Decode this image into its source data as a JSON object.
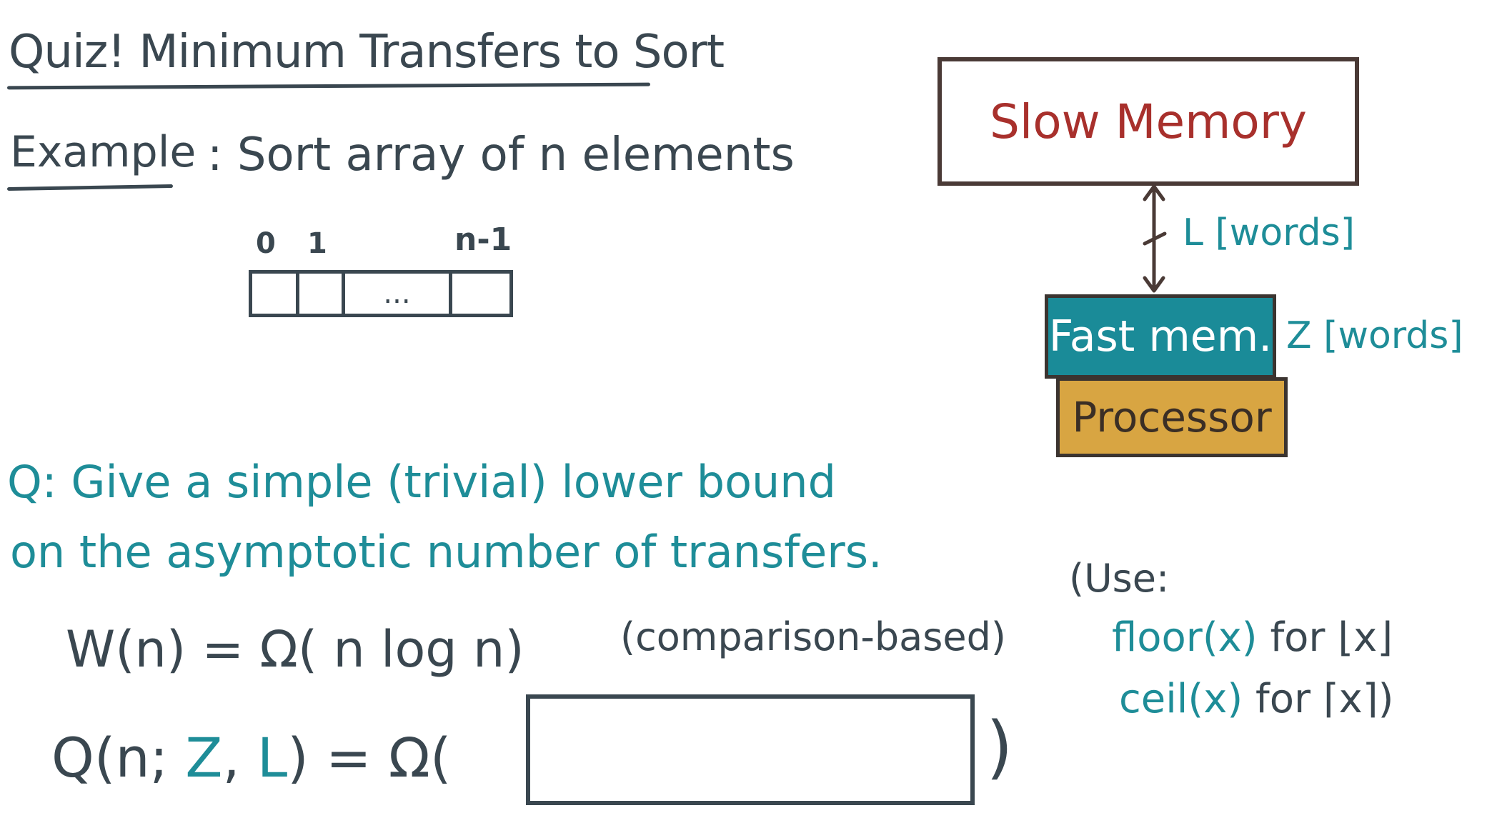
{
  "title": "Quiz! Minimum Transfers to Sort",
  "example": {
    "label": "Example",
    "text": ": Sort array of n elements"
  },
  "array": {
    "index_labels": [
      "0",
      "1",
      "n-1"
    ],
    "ellipsis": "..."
  },
  "diagram": {
    "slow_memory": "Slow Memory",
    "transfer_label": "L [words]",
    "fast_memory": "Fast mem.",
    "fast_memory_size": "Z [words]",
    "processor": "Processor",
    "colors": {
      "slow_memory_text": "#a8302c",
      "fast_memory_fill": "#1a8b98",
      "processor_fill": "#d8a542",
      "teal_text": "#1e8d98"
    }
  },
  "question": {
    "line1": "Q: Give a simple (trivial) lower bound",
    "line2": "on the asymptotic number of transfers."
  },
  "equations": {
    "work": "W(n) = Ω( n log n)",
    "work_note": "(comparison-based)",
    "transfers_prefix": "Q(n; ",
    "transfers_Z": "Z",
    "transfers_comma": ", ",
    "transfers_L": "L",
    "transfers_suffix": ") = Ω(",
    "answer_value": "",
    "close_paren": ")"
  },
  "use_note": {
    "label": "(Use:",
    "floor_code": "floor(x)",
    "floor_for": " for ",
    "floor_symbol": "⌊x⌋",
    "ceil_code": "ceil(x)",
    "ceil_for": " for ",
    "ceil_symbol": "⌈x⌉",
    "close": ")"
  }
}
